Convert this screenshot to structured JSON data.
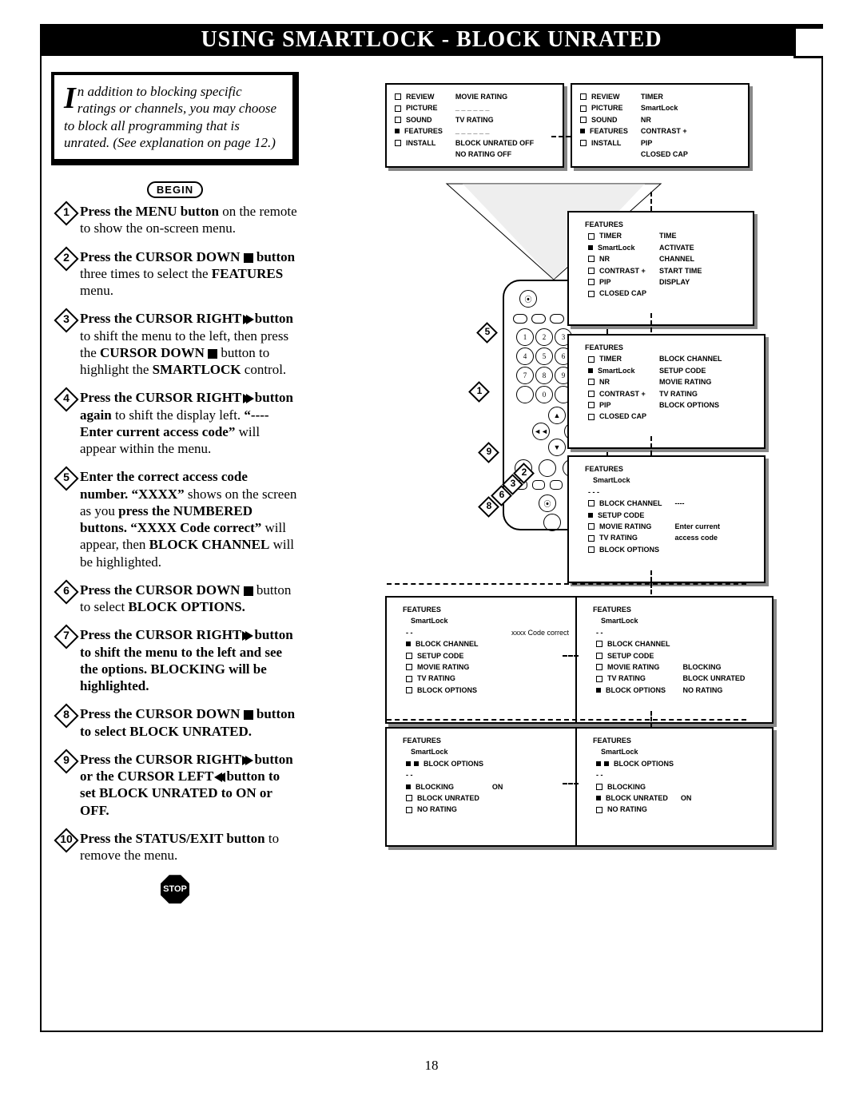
{
  "title": "USING SMARTLOCK - BLOCK UNRATED",
  "page_number": "18",
  "intro": {
    "dropcap": "I",
    "text": "n addition to blocking specific ratings or channels, you may choose to block all programming that is unrated. (See explanation on page 12.)"
  },
  "begin_label": "BEGIN",
  "stop_label": "STOP",
  "steps": [
    {
      "n": "1",
      "html": "<b>Press the MENU button</b> on the remote to show the on-screen menu."
    },
    {
      "n": "2",
      "html": "<b>Press the CURSOR DOWN</b> <span class='sq'></span> <b>button</b> three times to select the <b>FEATURES</b> menu."
    },
    {
      "n": "3",
      "html": "<b>Press the CURSOR RIGHT</b> <span class='tri-r'></span><span class='tri-r'></span> <b>button</b> to shift the menu to the left, then press the <b>CURSOR DOWN</b> <span class='sq'></span> button to highlight the <b>SMARTLOCK</b> control."
    },
    {
      "n": "4",
      "html": "<b>Press the CURSOR RIGHT</b> <span class='tri-r'></span><span class='tri-r'></span> <b>button again</b> to shift the display left. <b>“---- Enter current access code”</b> will appear within the menu."
    },
    {
      "n": "5",
      "html": "<b>Enter the correct access code number. “XXXX”</b> shows on the screen as you <b>press the NUMBERED buttons. “XXXX Code correct”</b> will appear, then <b>BLOCK CHANNEL</b> will be highlighted."
    },
    {
      "n": "6",
      "html": "<b>Press the CURSOR DOWN</b> <span class='sq'></span> button to select <b>BLOCK OPTIONS.</b>"
    },
    {
      "n": "7",
      "html": "<b>Press the CURSOR RIGHT <span class='tri-r'></span><span class='tri-r'></span> button to shift the menu to the left and see the options. BLOCKING will be highlighted.</b>"
    },
    {
      "n": "8",
      "html": "<b>Press the CURSOR DOWN <span class='sq'></span> button to select BLOCK UNRATED.</b>"
    },
    {
      "n": "9",
      "html": "<b>Press the CURSOR RIGHT <span class='tri-r'></span><span class='tri-r'></span> button or the CURSOR LEFT <span class='tri-l'></span><span class='tri-l'></span> button to set BLOCK UNRATED to ON or OFF.</b>"
    },
    {
      "n": "10",
      "html": "<b>Press the STATUS/EXIT button</b> to remove the menu."
    }
  ],
  "menus": {
    "m1": {
      "left": [
        "REVIEW",
        "PICTURE",
        "SOUND",
        "FEATURES",
        "INSTALL"
      ],
      "sel": "FEATURES",
      "right": [
        "MOVIE RATING",
        "_ _ _ _ _ _",
        "TV RATING",
        "_ _ _ _ _ _",
        "BLOCK UNRATED OFF",
        "NO RATING     OFF"
      ]
    },
    "m2": {
      "left": [
        "REVIEW",
        "PICTURE",
        "SOUND",
        "FEATURES",
        "INSTALL"
      ],
      "sel": "FEATURES",
      "right": [
        "TIMER",
        "SmartLock",
        "NR",
        "CONTRAST +",
        "PIP",
        "CLOSED CAP"
      ]
    },
    "m3": {
      "top": "FEATURES",
      "left": [
        "TIMER",
        "SmartLock",
        "NR",
        "CONTRAST +",
        "PIP",
        "CLOSED CAP"
      ],
      "sel": "SmartLock",
      "right": [
        "TIME",
        "ACTIVATE",
        "CHANNEL",
        "START TIME",
        "DISPLAY",
        ""
      ]
    },
    "m4": {
      "top": "FEATURES",
      "left": [
        "TIMER",
        "SmartLock",
        "NR",
        "CONTRAST +",
        "PIP",
        "CLOSED CAP"
      ],
      "sel": "SmartLock",
      "right": [
        "BLOCK CHANNEL",
        "SETUP CODE",
        "MOVIE RATING",
        "TV RATING",
        "BLOCK OPTIONS",
        ""
      ]
    },
    "m5": {
      "top": "FEATURES",
      "sub": "SmartLock",
      "left": [
        "BLOCK CHANNEL",
        "SETUP CODE",
        "MOVIE RATING",
        "TV RATING",
        "BLOCK OPTIONS"
      ],
      "sel": "SETUP CODE",
      "dots": "- - -",
      "right": [
        "----",
        "",
        "Enter current",
        "access code",
        "",
        ""
      ]
    },
    "m6": {
      "top": "FEATURES",
      "sub": "SmartLock",
      "dots": "- -",
      "corner": "xxxx Code correct",
      "left": [
        "BLOCK CHANNEL",
        "SETUP CODE",
        "MOVIE RATING",
        "TV RATING",
        "BLOCK OPTIONS"
      ],
      "sel": "BLOCK CHANNEL"
    },
    "m7": {
      "top": "FEATURES",
      "sub": "SmartLock",
      "dots": "- -",
      "left": [
        "BLOCK CHANNEL",
        "SETUP CODE",
        "MOVIE RATING",
        "TV RATING",
        "BLOCK OPTIONS"
      ],
      "sel": "BLOCK OPTIONS",
      "right": [
        "",
        "",
        "BLOCKING",
        "BLOCK UNRATED",
        "NO RATING"
      ]
    },
    "m8": {
      "top": "FEATURES",
      "sub": "SmartLock",
      "sub2": "BLOCK OPTIONS",
      "dots": "- -",
      "left": [
        "BLOCKING",
        "BLOCK UNRATED",
        "NO RATING"
      ],
      "sel": "BLOCKING",
      "right": [
        "ON",
        "",
        ""
      ]
    },
    "m9": {
      "top": "FEATURES",
      "sub": "SmartLock",
      "sub2": "BLOCK OPTIONS",
      "dots": "- -",
      "left": [
        "BLOCKING",
        "BLOCK UNRATED",
        "NO RATING"
      ],
      "sel": "BLOCK UNRATED",
      "right": [
        "",
        "ON",
        ""
      ]
    }
  }
}
